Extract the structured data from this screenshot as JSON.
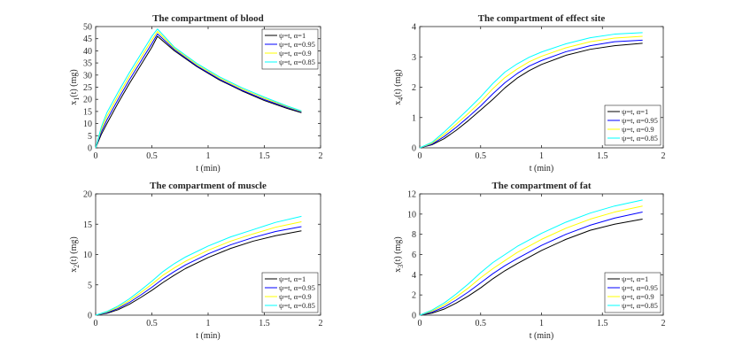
{
  "figure": {
    "series_names": [
      "ψ=t, α=1",
      "ψ=t, α=0.95",
      "ψ=t, α=0.9",
      "ψ=t, α=0.85"
    ],
    "series_colors": [
      "#000000",
      "#0000ff",
      "#ffff00",
      "#00ffff"
    ]
  },
  "chart_data": [
    {
      "type": "line",
      "title": "The compartment of blood",
      "xlabel": "t (min)",
      "ylabel": "x_1(t) (mg)",
      "ylabel_main": "x",
      "ylabel_sub": "1",
      "ylabel_rest": "(t) (mg)",
      "xlim": [
        0,
        2
      ],
      "ylim": [
        0,
        50
      ],
      "xticks": [
        0,
        0.5,
        1,
        1.5,
        2
      ],
      "xtick_labels": [
        "0",
        "0.5",
        "1",
        "1.5",
        "2"
      ],
      "yticks": [
        0,
        5,
        10,
        15,
        20,
        25,
        30,
        35,
        40,
        45,
        50
      ],
      "ytick_labels": [
        "0",
        "5",
        "10",
        "15",
        "20",
        "25",
        "30",
        "35",
        "40",
        "45",
        "50"
      ],
      "legend_position": "top-right",
      "series": [
        {
          "name": "ψ=t, α=1",
          "x": [
            0,
            0.05,
            0.1,
            0.2,
            0.3,
            0.4,
            0.5,
            0.55,
            0.7,
            0.9,
            1.1,
            1.3,
            1.5,
            1.7,
            1.83
          ],
          "y": [
            0,
            5.5,
            10,
            18.5,
            26.5,
            34,
            41.5,
            46,
            40,
            33.5,
            28,
            23.5,
            19.5,
            16.3,
            14.5
          ]
        },
        {
          "name": "ψ=t, α=0.95",
          "x": [
            0,
            0.05,
            0.1,
            0.2,
            0.3,
            0.4,
            0.5,
            0.55,
            0.7,
            0.9,
            1.1,
            1.3,
            1.5,
            1.7,
            1.83
          ],
          "y": [
            0,
            6.5,
            11.5,
            20,
            28,
            35.5,
            43,
            47,
            40.5,
            33.8,
            28.3,
            23.8,
            19.9,
            16.7,
            14.8
          ]
        },
        {
          "name": "ψ=t, α=0.9",
          "x": [
            0,
            0.05,
            0.1,
            0.2,
            0.3,
            0.4,
            0.5,
            0.55,
            0.7,
            0.9,
            1.1,
            1.3,
            1.5,
            1.7,
            1.83
          ],
          "y": [
            0,
            7.5,
            13,
            21.5,
            29.5,
            37,
            44.5,
            48,
            41,
            34.3,
            28.8,
            24.3,
            20.4,
            17,
            15
          ]
        },
        {
          "name": "ψ=t, α=0.85",
          "x": [
            0,
            0.05,
            0.1,
            0.2,
            0.3,
            0.4,
            0.5,
            0.55,
            0.7,
            0.9,
            1.1,
            1.3,
            1.5,
            1.7,
            1.83
          ],
          "y": [
            0,
            8.5,
            14.5,
            23,
            31,
            38.5,
            46,
            49,
            41.5,
            34.8,
            29.3,
            24.8,
            20.9,
            17.3,
            15.2
          ]
        }
      ]
    },
    {
      "type": "line",
      "title": "The compartment of effect site",
      "xlabel": "t (min)",
      "ylabel": "x_4(t) (mg)",
      "ylabel_main": "x",
      "ylabel_sub": "4",
      "ylabel_rest": "(t) (mg)",
      "xlim": [
        0,
        2
      ],
      "ylim": [
        0,
        4
      ],
      "xticks": [
        0,
        0.5,
        1,
        1.5,
        2
      ],
      "xtick_labels": [
        "0",
        "0.5",
        "1",
        "1.5",
        "2"
      ],
      "yticks": [
        0,
        1,
        2,
        3,
        4
      ],
      "ytick_labels": [
        "0",
        "1",
        "2",
        "3",
        "4"
      ],
      "legend_position": "bottom-right",
      "series": [
        {
          "name": "ψ=t, α=1",
          "x": [
            0,
            0.1,
            0.2,
            0.3,
            0.4,
            0.5,
            0.6,
            0.7,
            0.8,
            0.9,
            1.0,
            1.2,
            1.4,
            1.6,
            1.83
          ],
          "y": [
            0,
            0.1,
            0.3,
            0.58,
            0.9,
            1.25,
            1.6,
            1.98,
            2.3,
            2.55,
            2.75,
            3.05,
            3.25,
            3.37,
            3.45
          ]
        },
        {
          "name": "ψ=t, α=0.95",
          "x": [
            0,
            0.1,
            0.2,
            0.3,
            0.4,
            0.5,
            0.6,
            0.7,
            0.8,
            0.9,
            1.0,
            1.2,
            1.4,
            1.6,
            1.83
          ],
          "y": [
            0,
            0.12,
            0.37,
            0.68,
            1.02,
            1.38,
            1.78,
            2.15,
            2.45,
            2.7,
            2.88,
            3.17,
            3.37,
            3.5,
            3.55
          ]
        },
        {
          "name": "ψ=t, α=0.9",
          "x": [
            0,
            0.1,
            0.2,
            0.3,
            0.4,
            0.5,
            0.6,
            0.7,
            0.8,
            0.9,
            1.0,
            1.2,
            1.4,
            1.6,
            1.83
          ],
          "y": [
            0,
            0.15,
            0.44,
            0.78,
            1.14,
            1.52,
            1.95,
            2.32,
            2.6,
            2.84,
            3.02,
            3.3,
            3.5,
            3.62,
            3.68
          ]
        },
        {
          "name": "ψ=t, α=0.85",
          "x": [
            0,
            0.1,
            0.2,
            0.3,
            0.4,
            0.5,
            0.6,
            0.7,
            0.8,
            0.9,
            1.0,
            1.2,
            1.4,
            1.6,
            1.83
          ],
          "y": [
            0,
            0.18,
            0.52,
            0.9,
            1.28,
            1.68,
            2.12,
            2.5,
            2.77,
            2.99,
            3.16,
            3.43,
            3.63,
            3.75,
            3.8
          ]
        }
      ]
    },
    {
      "type": "line",
      "title": "The compartment of muscle",
      "xlabel": "t (min)",
      "ylabel": "x_2(t) (mg)",
      "ylabel_main": "x",
      "ylabel_sub": "2",
      "ylabel_rest": "(t) (mg)",
      "xlim": [
        0,
        2
      ],
      "ylim": [
        0,
        20
      ],
      "xticks": [
        0,
        0.5,
        1,
        1.5,
        2
      ],
      "xtick_labels": [
        "0",
        "0.5",
        "1",
        "1.5",
        "2"
      ],
      "yticks": [
        0,
        5,
        10,
        15,
        20
      ],
      "ytick_labels": [
        "0",
        "5",
        "10",
        "15",
        "20"
      ],
      "legend_position": "bottom-right",
      "series": [
        {
          "name": "ψ=t, α=1",
          "x": [
            0,
            0.1,
            0.2,
            0.3,
            0.4,
            0.5,
            0.6,
            0.7,
            0.8,
            1.0,
            1.2,
            1.4,
            1.6,
            1.83
          ],
          "y": [
            0,
            0.3,
            0.9,
            1.8,
            2.9,
            4.1,
            5.4,
            6.6,
            7.7,
            9.5,
            11,
            12.2,
            13.1,
            13.9
          ]
        },
        {
          "name": "ψ=t, α=0.95",
          "x": [
            0,
            0.1,
            0.2,
            0.3,
            0.4,
            0.5,
            0.6,
            0.7,
            0.8,
            1.0,
            1.2,
            1.4,
            1.6,
            1.83
          ],
          "y": [
            0,
            0.4,
            1.1,
            2.1,
            3.3,
            4.6,
            6.0,
            7.2,
            8.3,
            10.1,
            11.6,
            12.8,
            13.8,
            14.6
          ]
        },
        {
          "name": "ψ=t, α=0.9",
          "x": [
            0,
            0.1,
            0.2,
            0.3,
            0.4,
            0.5,
            0.6,
            0.7,
            0.8,
            1.0,
            1.2,
            1.4,
            1.6,
            1.83
          ],
          "y": [
            0,
            0.5,
            1.3,
            2.4,
            3.7,
            5.1,
            6.6,
            7.8,
            8.9,
            10.7,
            12.2,
            13.4,
            14.5,
            15.4
          ]
        },
        {
          "name": "ψ=t, α=0.85",
          "x": [
            0,
            0.1,
            0.2,
            0.3,
            0.4,
            0.5,
            0.6,
            0.7,
            0.8,
            1.0,
            1.2,
            1.4,
            1.6,
            1.83
          ],
          "y": [
            0,
            0.6,
            1.5,
            2.7,
            4.1,
            5.6,
            7.2,
            8.5,
            9.6,
            11.4,
            12.9,
            14.1,
            15.3,
            16.3
          ]
        }
      ]
    },
    {
      "type": "line",
      "title": "The compartment of fat",
      "xlabel": "t (min)",
      "ylabel": "x_3(t) (mg)",
      "ylabel_main": "x",
      "ylabel_sub": "3",
      "ylabel_rest": "(t) (mg)",
      "xlim": [
        0,
        2
      ],
      "ylim": [
        0,
        12
      ],
      "xticks": [
        0,
        0.5,
        1,
        1.5,
        2
      ],
      "xtick_labels": [
        "0",
        "0.5",
        "1",
        "1.5",
        "2"
      ],
      "yticks": [
        0,
        2,
        4,
        6,
        8,
        10,
        12
      ],
      "ytick_labels": [
        "0",
        "2",
        "4",
        "6",
        "8",
        "10",
        "12"
      ],
      "legend_position": "bottom-right",
      "series": [
        {
          "name": "ψ=t, α=1",
          "x": [
            0,
            0.1,
            0.2,
            0.3,
            0.4,
            0.5,
            0.6,
            0.7,
            0.8,
            1.0,
            1.2,
            1.4,
            1.6,
            1.83
          ],
          "y": [
            0,
            0.2,
            0.6,
            1.2,
            1.9,
            2.7,
            3.6,
            4.4,
            5.1,
            6.4,
            7.5,
            8.4,
            9.0,
            9.5
          ]
        },
        {
          "name": "ψ=t, α=0.95",
          "x": [
            0,
            0.1,
            0.2,
            0.3,
            0.4,
            0.5,
            0.6,
            0.7,
            0.8,
            1.0,
            1.2,
            1.4,
            1.6,
            1.83
          ],
          "y": [
            0,
            0.3,
            0.8,
            1.5,
            2.3,
            3.2,
            4.1,
            4.9,
            5.6,
            6.9,
            8.0,
            8.9,
            9.6,
            10.2
          ]
        },
        {
          "name": "ψ=t, α=0.9",
          "x": [
            0,
            0.1,
            0.2,
            0.3,
            0.4,
            0.5,
            0.6,
            0.7,
            0.8,
            1.0,
            1.2,
            1.4,
            1.6,
            1.83
          ],
          "y": [
            0,
            0.4,
            1.0,
            1.8,
            2.7,
            3.7,
            4.6,
            5.4,
            6.2,
            7.5,
            8.6,
            9.5,
            10.2,
            10.8
          ]
        },
        {
          "name": "ψ=t, α=0.85",
          "x": [
            0,
            0.1,
            0.2,
            0.3,
            0.4,
            0.5,
            0.6,
            0.7,
            0.8,
            1.0,
            1.2,
            1.4,
            1.6,
            1.83
          ],
          "y": [
            0,
            0.5,
            1.2,
            2.1,
            3.1,
            4.2,
            5.2,
            6.0,
            6.8,
            8.1,
            9.2,
            10.1,
            10.8,
            11.4
          ]
        }
      ]
    }
  ]
}
